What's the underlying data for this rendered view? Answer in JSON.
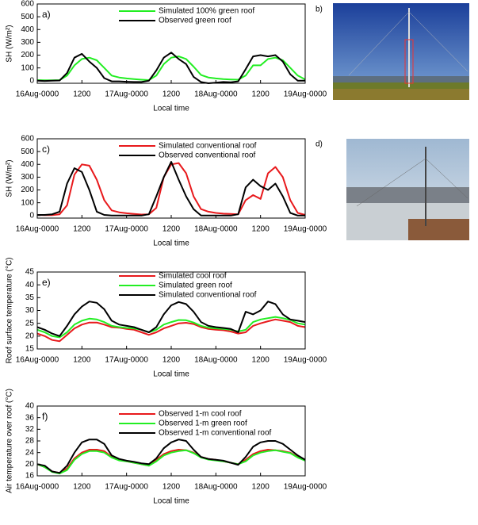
{
  "photo_labels": [
    "b)",
    "d)"
  ],
  "chart_data": [
    {
      "type": "line",
      "panel_label": "a)",
      "y_label": "SH (W/m²)",
      "x_label": "Local time",
      "x": [
        0,
        2,
        4,
        6,
        8,
        10,
        12,
        14,
        16,
        18,
        20,
        22,
        24,
        26,
        28,
        30,
        32,
        34,
        36,
        38,
        40,
        42,
        44,
        46,
        48,
        50,
        52,
        54,
        56,
        58,
        60,
        62,
        64,
        66,
        68,
        70,
        72
      ],
      "xlim": [
        0,
        72
      ],
      "xticks": [
        {
          "value": 0,
          "label": "16Aug-0000"
        },
        {
          "value": 12,
          "label": "1200"
        },
        {
          "value": 24,
          "label": "17Aug-0000"
        },
        {
          "value": 36,
          "label": "1200"
        },
        {
          "value": 48,
          "label": "18Aug-0000"
        },
        {
          "value": 60,
          "label": "1200"
        },
        {
          "value": 72,
          "label": "19Aug-0000"
        }
      ],
      "ylim": [
        -20,
        600
      ],
      "yticks": [
        0,
        100,
        200,
        300,
        400,
        500,
        600
      ],
      "series": [
        {
          "name": "Simulated 100% green roof",
          "color": "#22ee22",
          "values": [
            5,
            3,
            3,
            5,
            40,
            120,
            170,
            180,
            160,
            100,
            40,
            25,
            18,
            12,
            8,
            5,
            40,
            130,
            180,
            190,
            170,
            110,
            45,
            25,
            18,
            12,
            10,
            8,
            40,
            120,
            120,
            170,
            180,
            160,
            100,
            40,
            10
          ]
        },
        {
          "name": "Observed green roof",
          "color": "#000000",
          "values": [
            0,
            -2,
            0,
            2,
            60,
            180,
            210,
            150,
            100,
            20,
            -5,
            -5,
            -8,
            -10,
            -10,
            0,
            80,
            180,
            220,
            170,
            130,
            30,
            -10,
            -20,
            -15,
            -10,
            -12,
            -5,
            90,
            190,
            200,
            190,
            200,
            150,
            50,
            0,
            0
          ]
        }
      ]
    },
    {
      "type": "line",
      "panel_label": "c)",
      "y_label": "SH (W/m²)",
      "x_label": "Local time",
      "x": [
        0,
        2,
        4,
        6,
        8,
        10,
        12,
        14,
        16,
        18,
        20,
        22,
        24,
        26,
        28,
        30,
        32,
        34,
        36,
        38,
        40,
        42,
        44,
        46,
        48,
        50,
        52,
        54,
        56,
        58,
        60,
        62,
        64,
        66,
        68,
        70,
        72
      ],
      "xlim": [
        0,
        72
      ],
      "xticks": [
        {
          "value": 0,
          "label": "16Aug-0000"
        },
        {
          "value": 12,
          "label": "1200"
        },
        {
          "value": 24,
          "label": "17Aug-0000"
        },
        {
          "value": 36,
          "label": "1200"
        },
        {
          "value": 48,
          "label": "18Aug-0000"
        },
        {
          "value": 60,
          "label": "1200"
        },
        {
          "value": 72,
          "label": "19Aug-0000"
        }
      ],
      "ylim": [
        -20,
        600
      ],
      "yticks": [
        0,
        100,
        200,
        300,
        400,
        500,
        600
      ],
      "series": [
        {
          "name": "Simulated conventional roof",
          "color": "#e8191c",
          "values": [
            5,
            3,
            3,
            10,
            80,
            320,
            400,
            390,
            280,
            120,
            40,
            25,
            18,
            12,
            8,
            10,
            60,
            300,
            400,
            410,
            330,
            150,
            50,
            30,
            20,
            15,
            12,
            10,
            120,
            160,
            130,
            330,
            380,
            300,
            120,
            20,
            5
          ]
        },
        {
          "name": "Observed conventional roof",
          "color": "#000000",
          "values": [
            5,
            5,
            10,
            30,
            250,
            370,
            340,
            200,
            30,
            5,
            0,
            0,
            0,
            0,
            0,
            10,
            150,
            300,
            420,
            280,
            150,
            50,
            0,
            0,
            0,
            0,
            0,
            10,
            220,
            280,
            230,
            200,
            250,
            150,
            20,
            0,
            0
          ]
        }
      ]
    },
    {
      "type": "line",
      "panel_label": "e)",
      "y_label": "Roof surface temperature (°C)",
      "x_label": "Local time",
      "x": [
        0,
        2,
        4,
        6,
        8,
        10,
        12,
        14,
        16,
        18,
        20,
        22,
        24,
        26,
        28,
        30,
        32,
        34,
        36,
        38,
        40,
        42,
        44,
        46,
        48,
        50,
        52,
        54,
        56,
        58,
        60,
        62,
        64,
        66,
        68,
        70,
        72
      ],
      "xlim": [
        0,
        72
      ],
      "xticks": [
        {
          "value": 0,
          "label": "16Aug-0000"
        },
        {
          "value": 12,
          "label": "1200"
        },
        {
          "value": 24,
          "label": "17Aug-0000"
        },
        {
          "value": 36,
          "label": "1200"
        },
        {
          "value": 48,
          "label": "18Aug-0000"
        },
        {
          "value": 60,
          "label": "1200"
        },
        {
          "value": 72,
          "label": "19Aug-0000"
        }
      ],
      "ylim": [
        15,
        45
      ],
      "yticks": [
        15,
        20,
        25,
        30,
        35,
        40,
        45
      ],
      "series": [
        {
          "name": "Simulated cool roof",
          "color": "#e8191c",
          "values": [
            21,
            20,
            18.5,
            18,
            20.5,
            23,
            24.5,
            25.3,
            25.3,
            24.5,
            23.5,
            23.3,
            22.8,
            22.5,
            21.5,
            20.5,
            21.5,
            23,
            24,
            25,
            25.2,
            24.7,
            23.5,
            22.8,
            22.5,
            22.3,
            21.8,
            21,
            21.5,
            24,
            25,
            25.8,
            26.5,
            26,
            25.5,
            24,
            23.5
          ]
        },
        {
          "name": "Simulated green roof",
          "color": "#22ee22",
          "values": [
            22.5,
            21.5,
            20,
            19.5,
            21.5,
            24.5,
            26,
            26.8,
            26.5,
            25.5,
            24,
            23.5,
            23.2,
            23,
            22.5,
            21.5,
            22.5,
            24.5,
            25.5,
            26.3,
            26.2,
            25.3,
            24,
            23.3,
            23,
            22.8,
            22.5,
            21.8,
            22.5,
            25.5,
            26.5,
            27,
            27.5,
            27,
            26.3,
            25,
            24.5
          ]
        },
        {
          "name": "Simulated conventional roof",
          "color": "#000000",
          "values": [
            23.5,
            22.5,
            21,
            20,
            24,
            28.5,
            31.5,
            33.5,
            33,
            30.5,
            26,
            24.5,
            24,
            23.5,
            22.5,
            21.5,
            23.5,
            28.5,
            32,
            33.3,
            32.5,
            29.5,
            25.5,
            24,
            23.5,
            23.2,
            22.8,
            21.5,
            29.5,
            28.5,
            30,
            33.5,
            32.5,
            28.5,
            26.5,
            26,
            25.5
          ]
        }
      ]
    },
    {
      "type": "line",
      "panel_label": "f)",
      "y_label": "Air temperature over roof (°C)",
      "x_label": "Local time",
      "x": [
        0,
        2,
        4,
        6,
        8,
        10,
        12,
        14,
        16,
        18,
        20,
        22,
        24,
        26,
        28,
        30,
        32,
        34,
        36,
        38,
        40,
        42,
        44,
        46,
        48,
        50,
        52,
        54,
        56,
        58,
        60,
        62,
        64,
        66,
        68,
        70,
        72
      ],
      "xlim": [
        0,
        72
      ],
      "xticks": [
        {
          "value": 0,
          "label": "16Aug-0000"
        },
        {
          "value": 12,
          "label": "1200"
        },
        {
          "value": 24,
          "label": "17Aug-0000"
        },
        {
          "value": 36,
          "label": "1200"
        },
        {
          "value": 48,
          "label": "18Aug-0000"
        },
        {
          "value": 60,
          "label": "1200"
        },
        {
          "value": 72,
          "label": "19Aug-0000"
        }
      ],
      "ylim": [
        16,
        40
      ],
      "yticks": [
        16,
        20,
        24,
        28,
        32,
        36,
        40
      ],
      "series": [
        {
          "name": "Observed 1-m cool roof",
          "color": "#e8191c",
          "values": [
            20,
            19,
            17.5,
            17,
            18.5,
            22,
            24,
            25,
            25,
            24.5,
            22.5,
            21.5,
            21,
            20.5,
            20,
            19.5,
            21.5,
            23.5,
            24.5,
            25,
            24.8,
            24,
            22.5,
            21.8,
            21.5,
            21,
            20.5,
            20,
            21.5,
            23.5,
            24.5,
            25,
            24.8,
            24.5,
            24,
            22.5,
            21.5
          ]
        },
        {
          "name": "Observed 1-m green roof",
          "color": "#22ee22",
          "values": [
            20,
            19,
            17.3,
            16.8,
            18,
            21.5,
            23.5,
            24.5,
            24.5,
            24,
            22.3,
            21.3,
            21,
            20.5,
            20,
            19.5,
            21,
            23,
            24,
            24.5,
            24.8,
            23.8,
            22.3,
            21.6,
            21.3,
            21,
            20.5,
            20,
            21,
            23,
            24,
            24.5,
            24.8,
            24.3,
            23.8,
            22.3,
            21.2
          ]
        },
        {
          "name": "Observed 1-m conventional roof",
          "color": "#000000",
          "values": [
            20,
            19.5,
            17.5,
            17,
            19.5,
            24,
            27.5,
            28.5,
            28.5,
            27,
            23,
            21.8,
            21.2,
            20.8,
            20.3,
            20,
            22,
            25.5,
            27.5,
            28.5,
            28,
            25,
            22.5,
            21.8,
            21.5,
            21.2,
            20.5,
            19.8,
            22.5,
            26,
            27.5,
            28,
            28,
            27,
            25,
            23,
            21.5
          ]
        }
      ]
    }
  ]
}
